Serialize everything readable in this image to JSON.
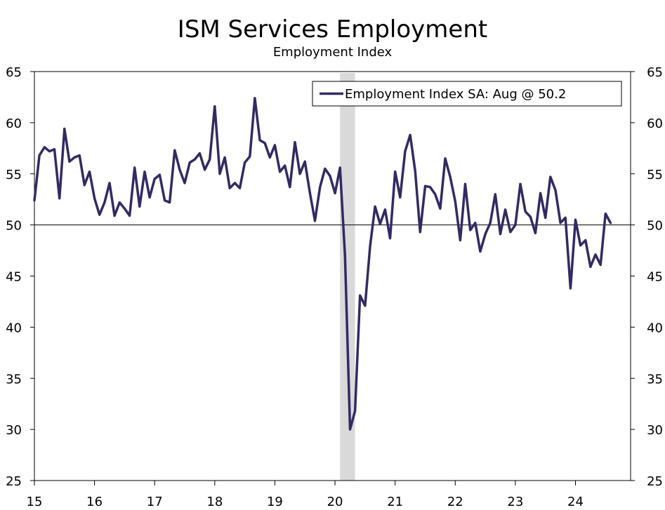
{
  "chart_data": {
    "type": "line",
    "title": "ISM Services Employment",
    "subtitle": "Employment Index",
    "xlabel": "",
    "ylabel": "",
    "ylim": [
      25,
      65
    ],
    "yticks": [
      25,
      30,
      35,
      40,
      45,
      50,
      55,
      60,
      65
    ],
    "xlim": [
      2015.0,
      2024.917
    ],
    "xticks": [
      {
        "value": 2015,
        "label": "15"
      },
      {
        "value": 2016,
        "label": "16"
      },
      {
        "value": 2017,
        "label": "17"
      },
      {
        "value": 2018,
        "label": "18"
      },
      {
        "value": 2019,
        "label": "19"
      },
      {
        "value": 2020,
        "label": "20"
      },
      {
        "value": 2021,
        "label": "21"
      },
      {
        "value": 2022,
        "label": "22"
      },
      {
        "value": 2023,
        "label": "23"
      },
      {
        "value": 2024,
        "label": "24"
      }
    ],
    "reference_line": 50,
    "recession_shading": [
      2020.083,
      2020.333
    ],
    "legend_position": "top-right",
    "series": [
      {
        "name": "Employment Index SA: Aug @ 50.2",
        "color": "#332a63",
        "start": 2015.0,
        "step_months": 1,
        "values": [
          52.4,
          56.8,
          57.6,
          57.2,
          57.4,
          52.6,
          59.4,
          56.2,
          56.6,
          56.8,
          53.9,
          55.2,
          52.6,
          51.0,
          52.2,
          54.1,
          50.9,
          52.2,
          51.6,
          50.9,
          55.6,
          51.8,
          55.2,
          52.7,
          54.5,
          54.9,
          52.4,
          52.2,
          57.3,
          55.4,
          54.1,
          56.1,
          56.4,
          57.0,
          55.4,
          56.4,
          61.6,
          55.0,
          56.6,
          53.6,
          54.1,
          53.6,
          56.1,
          56.7,
          62.4,
          58.3,
          58.0,
          56.6,
          57.8,
          55.2,
          55.8,
          53.7,
          58.1,
          55.0,
          56.2,
          53.1,
          50.4,
          53.7,
          55.5,
          54.8,
          53.1,
          55.6,
          47.0,
          30.0,
          31.8,
          43.1,
          42.1,
          47.9,
          51.8,
          50.1,
          51.5,
          48.7,
          55.2,
          52.7,
          57.2,
          58.8,
          55.3,
          49.3,
          53.8,
          53.7,
          53.0,
          51.6,
          56.5,
          54.7,
          52.3,
          48.5,
          54.0,
          49.5,
          50.2,
          47.4,
          49.1,
          50.2,
          53.0,
          49.1,
          51.5,
          49.3,
          50.0,
          54.0,
          51.3,
          50.8,
          49.2,
          53.1,
          50.7,
          54.7,
          53.4,
          50.2,
          50.7,
          43.8,
          50.5,
          48.0,
          48.5,
          45.9,
          47.1,
          46.1,
          51.1,
          50.2
        ]
      }
    ]
  }
}
